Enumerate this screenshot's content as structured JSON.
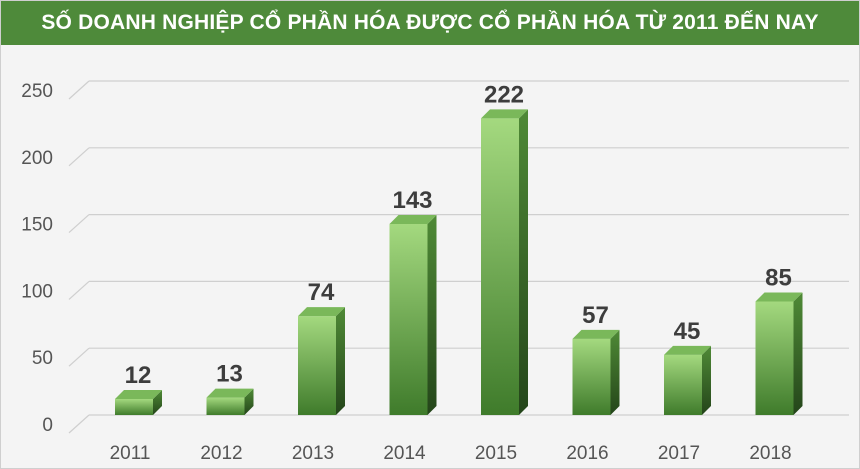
{
  "chart_data": {
    "type": "bar",
    "title": "SỐ DOANH NGHIỆP CỔ PHẦN HÓA ĐƯỢC CỔ PHẦN HÓA TỪ 2011 ĐẾN NAY",
    "categories": [
      "2011",
      "2012",
      "2013",
      "2014",
      "2015",
      "2016",
      "2017",
      "2018"
    ],
    "values": [
      12,
      13,
      74,
      143,
      222,
      57,
      45,
      85
    ],
    "ylim": [
      0,
      250
    ],
    "yticks": [
      0,
      50,
      100,
      150,
      200,
      250
    ],
    "grid": true,
    "style": "3d-bars",
    "colors": {
      "title_bg": "#4e8a3a",
      "bar_top": "#9fd67a",
      "bar_bottom": "#3f7b2b",
      "bar_side": "#2f5a20",
      "bar_cap": "#7ab85a"
    }
  }
}
